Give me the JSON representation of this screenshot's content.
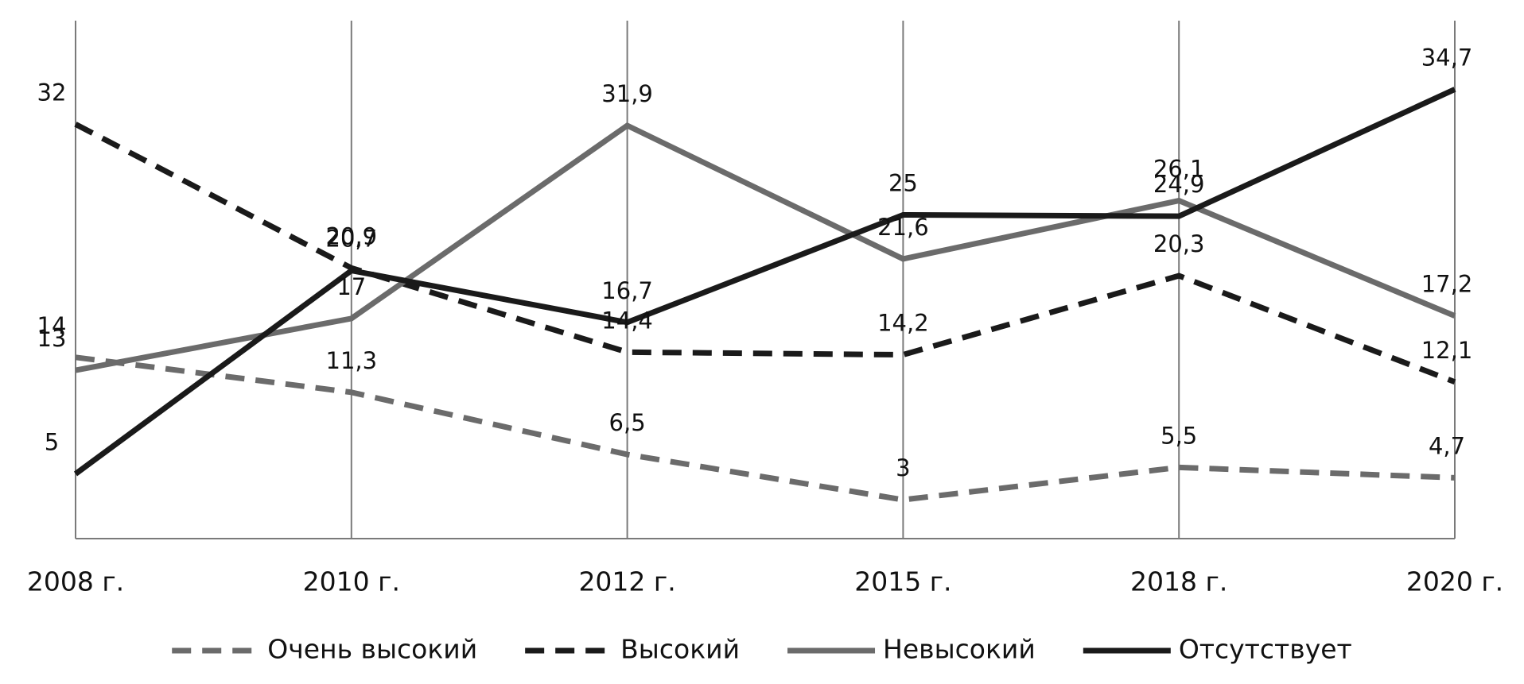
{
  "chart_data": {
    "type": "line",
    "categories": [
      "2008 г.",
      "2010 г.",
      "2012 г.",
      "2015 г.",
      "2018 г.",
      "2020 г."
    ],
    "ylim": [
      0,
      40
    ],
    "vertical_grid": true,
    "legend": "bottom",
    "series": [
      {
        "name": "Очень высокий",
        "color": "#6b6b6b",
        "dashed": true,
        "values": [
          14,
          11.3,
          6.5,
          3,
          5.5,
          4.7
        ],
        "value_labels": [
          "14",
          "11,3",
          "6,5",
          "3",
          "5,5",
          "4,7"
        ]
      },
      {
        "name": "Высокий",
        "color": "#1a1a1a",
        "dashed": true,
        "values": [
          32,
          20.9,
          14.4,
          14.2,
          20.3,
          12.1
        ],
        "value_labels": [
          "32",
          "20,9",
          "14,4",
          "14,2",
          "20,3",
          "12,1"
        ]
      },
      {
        "name": "Невысокий",
        "color": "#6b6b6b",
        "dashed": false,
        "values": [
          13,
          17,
          31.9,
          21.6,
          26.1,
          17.2
        ],
        "value_labels": [
          "13",
          "17",
          "31,9",
          "21,6",
          "26,1",
          "17,2"
        ]
      },
      {
        "name": "Отсутствует",
        "color": "#1a1a1a",
        "dashed": false,
        "values": [
          5,
          20.7,
          16.7,
          25,
          24.9,
          34.7
        ],
        "value_labels": [
          "5",
          "20,7",
          "16,7",
          "25",
          "24,9",
          "34,7"
        ]
      }
    ]
  }
}
